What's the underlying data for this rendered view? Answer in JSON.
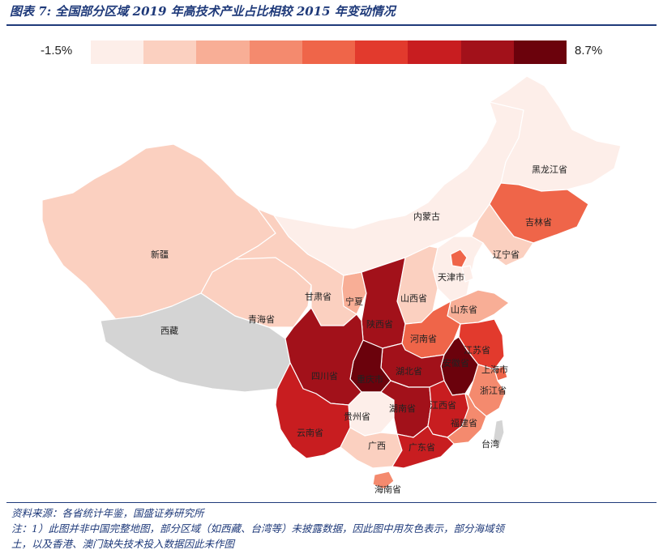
{
  "title": "图表 7: 全国部分区域 2019 年高技术产业占比相较 2015 年变动情况",
  "legend": {
    "min_label": "-1.5%",
    "max_label": "8.7%",
    "colors": [
      "#fdeee9",
      "#fbd0c0",
      "#f8ae96",
      "#f48a6e",
      "#ef6549",
      "#e23a2d",
      "#c81d20",
      "#a2111a",
      "#6b020c"
    ]
  },
  "map": {
    "no_data_color": "#d4d4d4",
    "provinces": [
      {
        "id": "heilongjiang",
        "label": "黑龙江省",
        "bin": 0
      },
      {
        "id": "jilin",
        "label": "吉林省",
        "bin": 4
      },
      {
        "id": "liaoning",
        "label": "辽宁省",
        "bin": 1
      },
      {
        "id": "neimenggu",
        "label": "内蒙古",
        "bin": 0
      },
      {
        "id": "xinjiang",
        "label": "新疆",
        "bin": 1
      },
      {
        "id": "xizang",
        "label": "西藏",
        "bin": null
      },
      {
        "id": "qinghai",
        "label": "青海省",
        "bin": 1
      },
      {
        "id": "gansu",
        "label": "甘肃省",
        "bin": 1
      },
      {
        "id": "ningxia",
        "label": "宁夏",
        "bin": 2
      },
      {
        "id": "shaanxi",
        "label": "陕西省",
        "bin": 7
      },
      {
        "id": "shanxi",
        "label": "山西省",
        "bin": 1
      },
      {
        "id": "hebei",
        "label": "",
        "bin": 0
      },
      {
        "id": "beijing",
        "label": "",
        "bin": 4
      },
      {
        "id": "tianjin",
        "label": "天津市",
        "bin": 0
      },
      {
        "id": "shandong",
        "label": "山东省",
        "bin": 2
      },
      {
        "id": "henan",
        "label": "河南省",
        "bin": 4
      },
      {
        "id": "jiangsu",
        "label": "江苏省",
        "bin": 5
      },
      {
        "id": "anhui",
        "label": "安徽省",
        "bin": 8
      },
      {
        "id": "shanghai",
        "label": "上海市",
        "bin": 4
      },
      {
        "id": "zhejiang",
        "label": "浙江省",
        "bin": 3
      },
      {
        "id": "hubei",
        "label": "湖北省",
        "bin": 7
      },
      {
        "id": "chongqing",
        "label": "重庆市",
        "bin": 8
      },
      {
        "id": "sichuan",
        "label": "四川省",
        "bin": 7
      },
      {
        "id": "guizhou",
        "label": "贵州省",
        "bin": 0
      },
      {
        "id": "hunan",
        "label": "湖南省",
        "bin": 7
      },
      {
        "id": "jiangxi",
        "label": "江西省",
        "bin": 6
      },
      {
        "id": "fujian",
        "label": "福建省",
        "bin": 3
      },
      {
        "id": "yunnan",
        "label": "云南省",
        "bin": 6
      },
      {
        "id": "guangxi",
        "label": "广西",
        "bin": 1
      },
      {
        "id": "guangdong",
        "label": "广东省",
        "bin": 6
      },
      {
        "id": "hainan",
        "label": "海南省",
        "bin": 3
      },
      {
        "id": "taiwan",
        "label": "台湾",
        "bin": null
      }
    ]
  },
  "footer": {
    "source": "资料来源：各省统计年鉴，国盛证券研究所",
    "note_line1": "注：1）此图并非中国完整地图，部分区域（如西藏、台湾等）未披露数据，因此图中用灰色表示，部分海域领",
    "note_line2": "土，以及香港、澳门缺失技术投入数据因此未作图"
  }
}
